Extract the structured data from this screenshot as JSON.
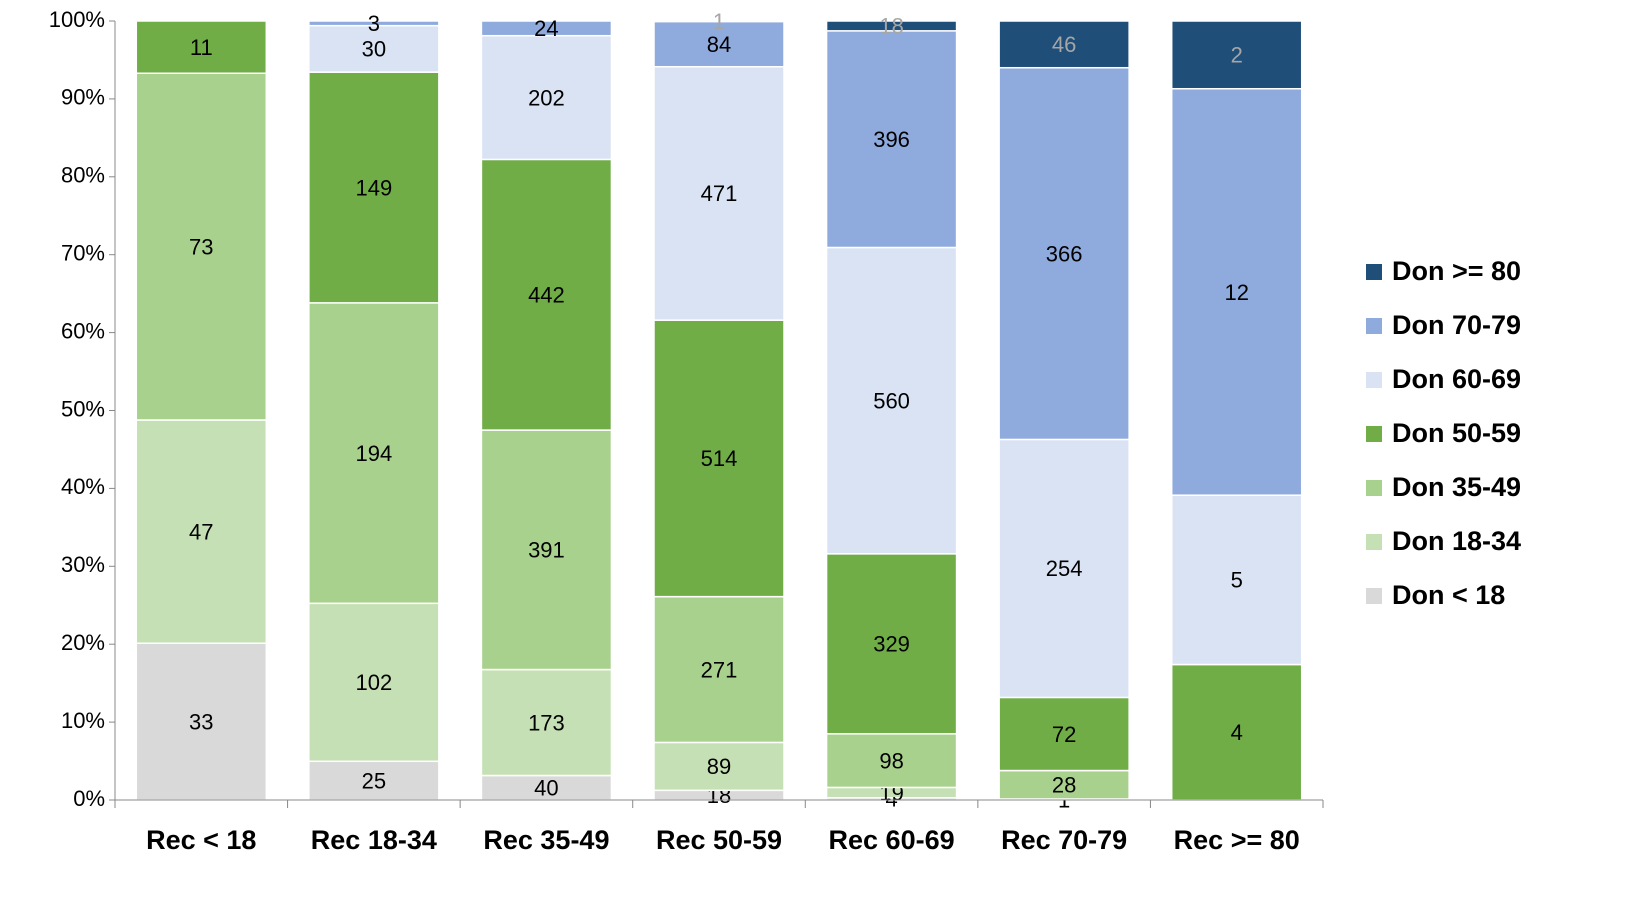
{
  "chart_data": {
    "type": "stacked_percent_bar",
    "categories": [
      "Rec < 18",
      "Rec 18-34",
      "Rec 35-49",
      "Rec 50-59",
      "Rec 60-69",
      "Rec 70-79",
      "Rec >= 80"
    ],
    "series": [
      {
        "name": "Don < 18",
        "color": "#d9d9d9",
        "values": [
          33,
          25,
          40,
          18,
          4,
          null,
          null
        ]
      },
      {
        "name": "Don 18-34",
        "color": "#c5e0b4",
        "values": [
          47,
          102,
          173,
          89,
          19,
          1,
          null
        ]
      },
      {
        "name": "Don 35-49",
        "color": "#a9d18e",
        "values": [
          73,
          194,
          391,
          271,
          98,
          28,
          null
        ]
      },
      {
        "name": "Don 50-59",
        "color": "#70ad47",
        "values": [
          11,
          149,
          442,
          514,
          329,
          72,
          4
        ]
      },
      {
        "name": "Don 60-69",
        "color": "#dae3f3",
        "values": [
          null,
          30,
          202,
          471,
          560,
          254,
          5
        ]
      },
      {
        "name": "Don 70-79",
        "color": "#8faadc",
        "values": [
          null,
          3,
          24,
          84,
          396,
          366,
          12
        ]
      },
      {
        "name": "Don >= 80",
        "color": "#1f4e79",
        "values": [
          null,
          null,
          null,
          1,
          18,
          46,
          2
        ]
      }
    ],
    "ylim": [
      0,
      100
    ],
    "yticks": [
      {
        "value": 0,
        "label": "0%"
      },
      {
        "value": 10,
        "label": "10%"
      },
      {
        "value": 20,
        "label": "20%"
      },
      {
        "value": 30,
        "label": "30%"
      },
      {
        "value": 40,
        "label": "40%"
      },
      {
        "value": 50,
        "label": "50%"
      },
      {
        "value": 60,
        "label": "60%"
      },
      {
        "value": 70,
        "label": "70%"
      },
      {
        "value": 80,
        "label": "80%"
      },
      {
        "value": 90,
        "label": "90%"
      },
      {
        "value": 100,
        "label": "100%"
      }
    ],
    "grid": false,
    "legend": "right"
  }
}
